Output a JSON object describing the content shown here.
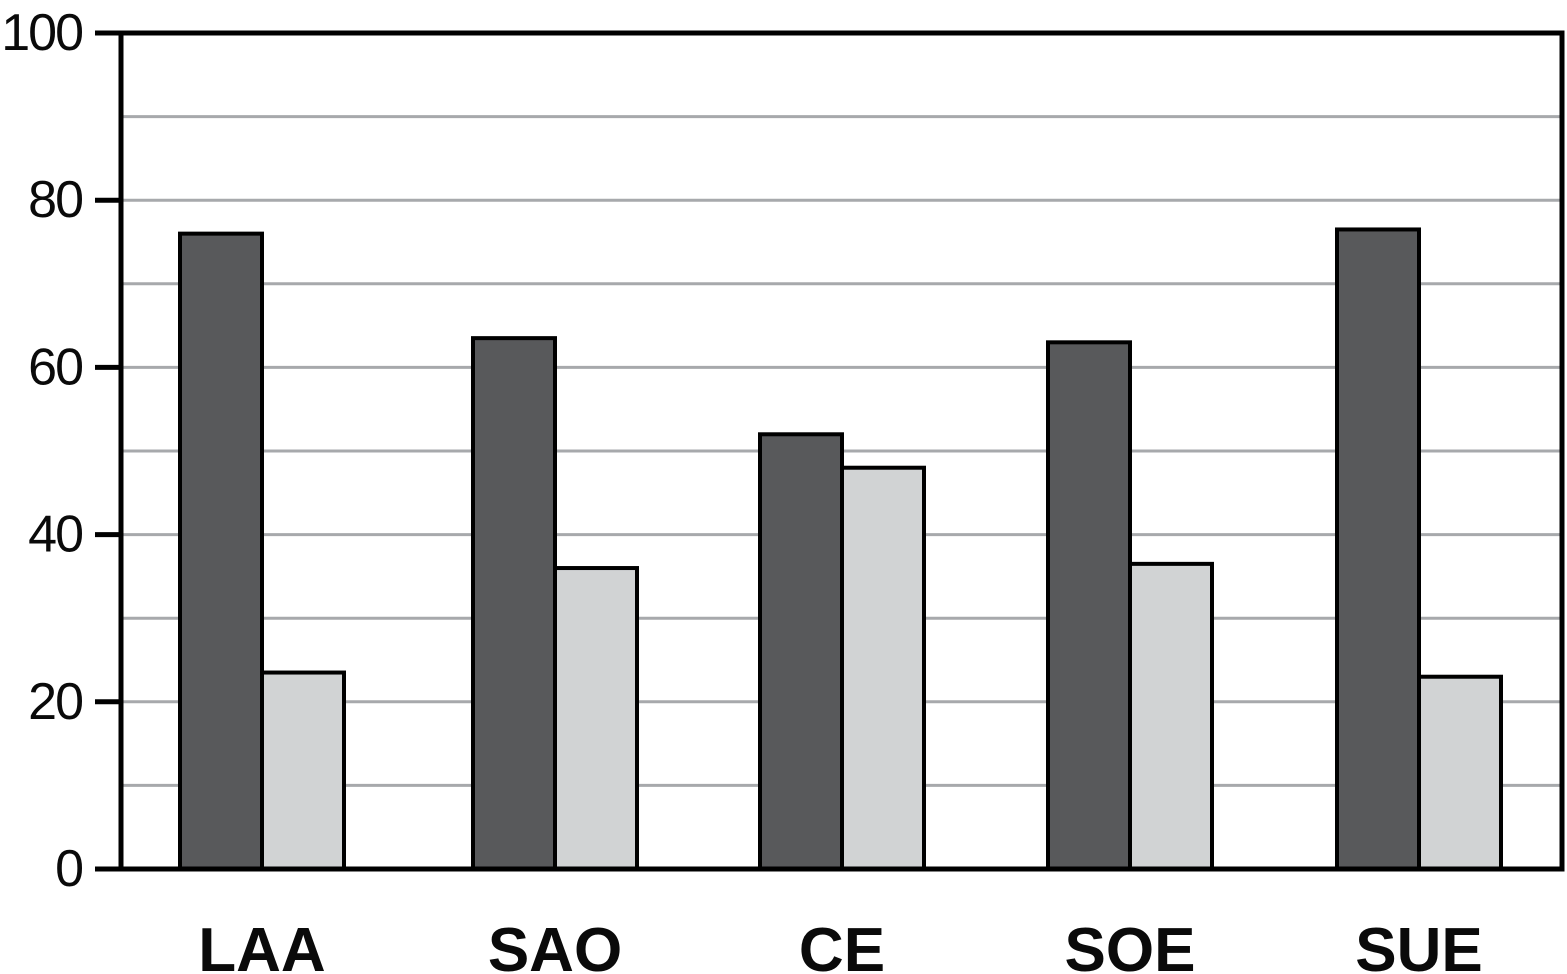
{
  "chart_data": {
    "type": "bar",
    "title": "",
    "xlabel": "",
    "ylabel": "",
    "categories": [
      "LAA",
      "SAO",
      "CE",
      "SOE",
      "SUE"
    ],
    "series": [
      {
        "name": "dark_gray",
        "color": "#58595B",
        "values": [
          76,
          63.5,
          52,
          63,
          76.5
        ]
      },
      {
        "name": "light_gray",
        "color": "#D1D3D4",
        "values": [
          23.5,
          36,
          48,
          36.5,
          23
        ]
      }
    ],
    "ylim": [
      0,
      100
    ],
    "yticks": [
      0,
      20,
      40,
      60,
      80,
      100
    ],
    "gridline_step": 10,
    "grid": true,
    "legend": false,
    "colors": {
      "gridline": "#A7A9AC",
      "axis": "#000000",
      "bar_border": "#000000",
      "text": "#0A0A0A",
      "background": "#FFFFFF"
    }
  }
}
